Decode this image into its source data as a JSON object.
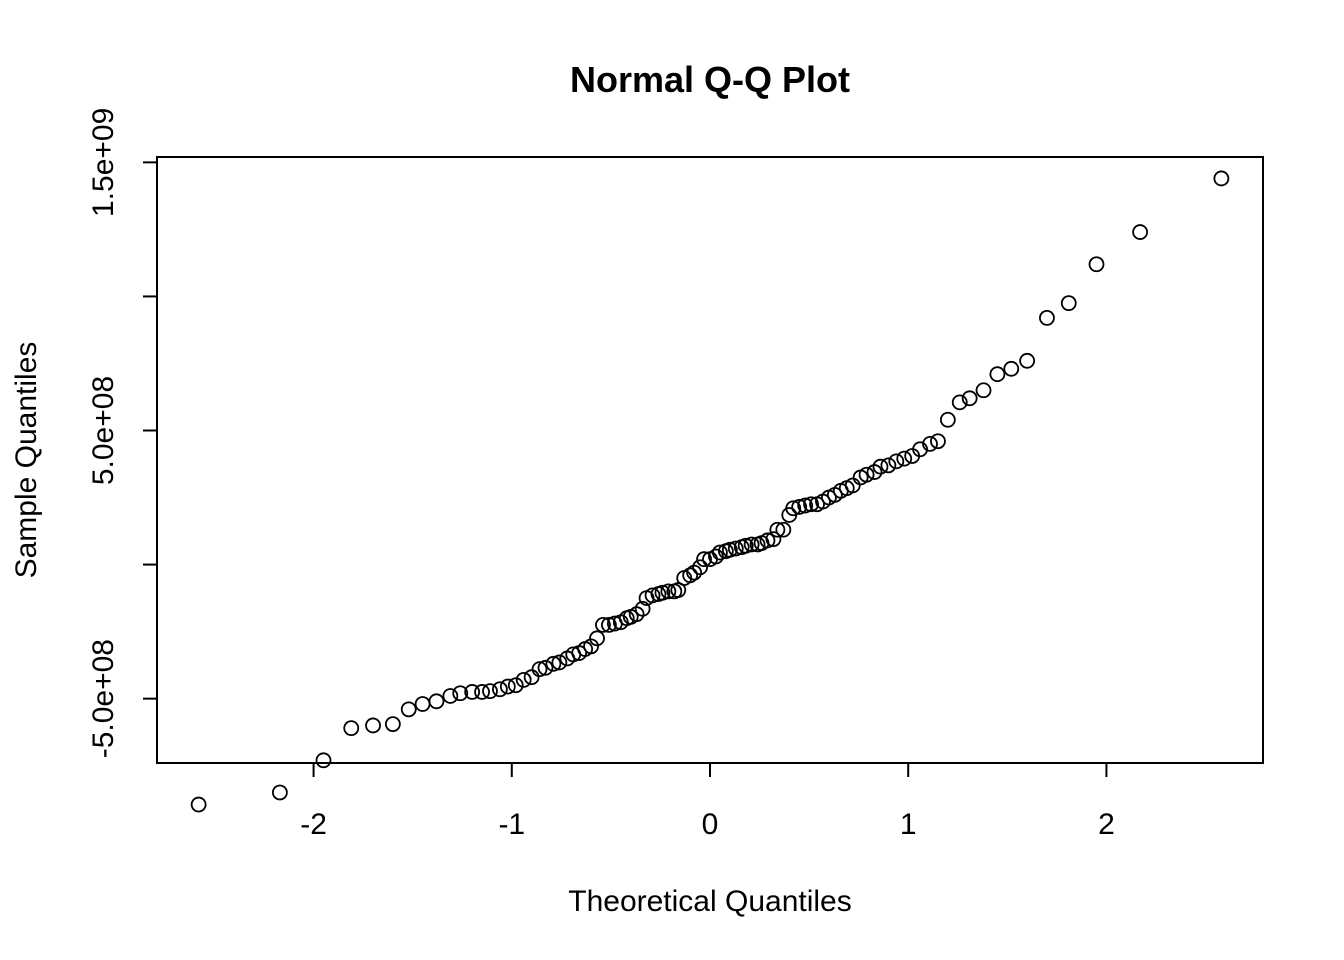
{
  "chart_data": {
    "type": "scatter",
    "title": "Normal Q-Q Plot",
    "xlabel": "Theoretical Quantiles",
    "ylabel": "Sample Quantiles",
    "xlim": [
      -2.79,
      2.79
    ],
    "ylim": [
      -740000000.0,
      1520000000.0
    ],
    "x_ticks": [
      {
        "value": -2,
        "label": "-2"
      },
      {
        "value": -1,
        "label": "-1"
      },
      {
        "value": 0,
        "label": "0"
      },
      {
        "value": 1,
        "label": "1"
      },
      {
        "value": 2,
        "label": "2"
      }
    ],
    "y_ticks": [
      {
        "value": -500000000,
        "label": "-5.0e+08"
      },
      {
        "value": 0,
        "label": ""
      },
      {
        "value": 500000000,
        "label": "5.0e+08"
      },
      {
        "value": 1000000000,
        "label": ""
      },
      {
        "value": 1500000000,
        "label": "1.5e+09"
      }
    ],
    "grid": false,
    "legend": "none",
    "marker": "open-circle",
    "x": [
      -2.58,
      -2.17,
      -1.95,
      -1.81,
      -1.7,
      -1.6,
      -1.52,
      -1.45,
      -1.38,
      -1.31,
      -1.26,
      -1.2,
      -1.15,
      -1.11,
      -1.06,
      -1.02,
      -0.98,
      -0.94,
      -0.9,
      -0.86,
      -0.83,
      -0.79,
      -0.76,
      -0.72,
      -0.69,
      -0.66,
      -0.63,
      -0.6,
      -0.57,
      -0.54,
      -0.51,
      -0.48,
      -0.45,
      -0.42,
      -0.4,
      -0.37,
      -0.34,
      -0.32,
      -0.29,
      -0.26,
      -0.24,
      -0.21,
      -0.18,
      -0.16,
      -0.13,
      -0.1,
      -0.08,
      -0.05,
      -0.03,
      0.0,
      0.03,
      0.05,
      0.08,
      0.1,
      0.13,
      0.16,
      0.18,
      0.21,
      0.24,
      0.26,
      0.29,
      0.32,
      0.34,
      0.37,
      0.4,
      0.42,
      0.45,
      0.48,
      0.51,
      0.54,
      0.57,
      0.6,
      0.63,
      0.66,
      0.69,
      0.72,
      0.76,
      0.79,
      0.83,
      0.86,
      0.9,
      0.94,
      0.98,
      1.02,
      1.06,
      1.11,
      1.15,
      1.2,
      1.26,
      1.31,
      1.38,
      1.45,
      1.52,
      1.6,
      1.7,
      1.81,
      1.95,
      2.17,
      2.58
    ],
    "y": [
      -895000000.0,
      -850000000.0,
      -730000000.0,
      -610000000.0,
      -600000000.0,
      -595000000.0,
      -540000000.0,
      -520000000.0,
      -510000000.0,
      -490000000.0,
      -480000000.0,
      -475000000.0,
      -475000000.0,
      -472000000.0,
      -465000000.0,
      -455000000.0,
      -450000000.0,
      -430000000.0,
      -420000000.0,
      -390000000.0,
      -385000000.0,
      -370000000.0,
      -365000000.0,
      -350000000.0,
      -335000000.0,
      -330000000.0,
      -315000000.0,
      -305000000.0,
      -275000000.0,
      -225000000.0,
      -225000000.0,
      -220000000.0,
      -215000000.0,
      -200000000.0,
      -195000000.0,
      -185000000.0,
      -165000000.0,
      -125000000.0,
      -115000000.0,
      -110000000.0,
      -105000000.0,
      -100000000.0,
      -100000000.0,
      -95000000.0,
      -50000000.0,
      -40000000.0,
      -30000000.0,
      -10000000.0,
      20000000.0,
      20000000.0,
      30000000.0,
      45000000.0,
      50000000.0,
      55000000.0,
      60000000.0,
      65000000.0,
      70000000.0,
      75000000.0,
      75000000.0,
      80000000.0,
      90000000.0,
      95000000.0,
      130000000.0,
      130000000.0,
      185000000.0,
      210000000.0,
      215000000.0,
      220000000.0,
      225000000.0,
      225000000.0,
      235000000.0,
      250000000.0,
      260000000.0,
      275000000.0,
      285000000.0,
      295000000.0,
      325000000.0,
      335000000.0,
      345000000.0,
      365000000.0,
      370000000.0,
      385000000.0,
      395000000.0,
      405000000.0,
      430000000.0,
      450000000.0,
      460000000.0,
      540000000.0,
      605000000.0,
      620000000.0,
      650000000.0,
      710000000.0,
      730000000.0,
      760000000.0,
      920000000.0,
      975000000.0,
      1120000000.0,
      1240000000.0,
      1440000000.0
    ]
  }
}
